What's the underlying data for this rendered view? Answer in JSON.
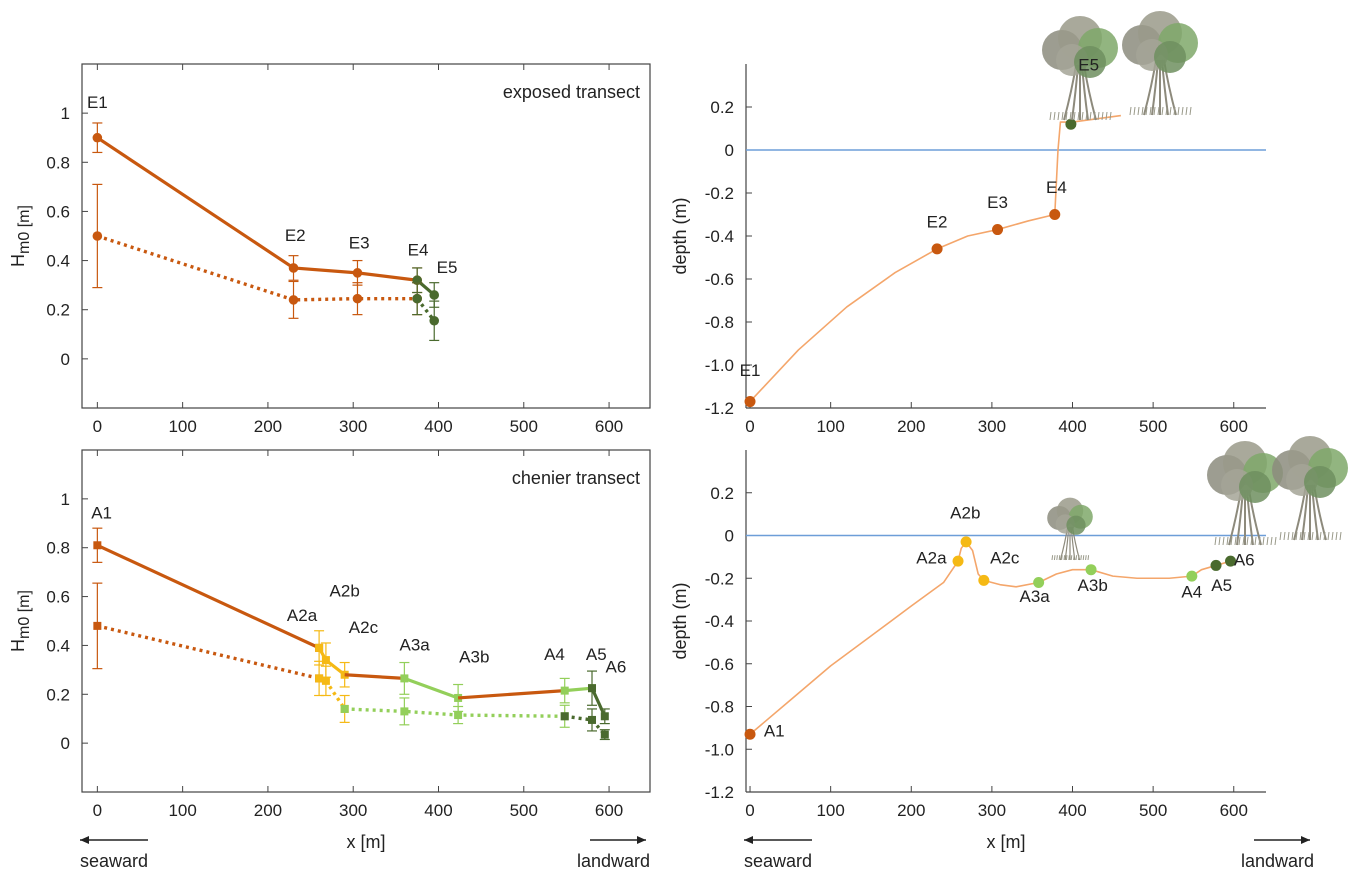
{
  "colors": {
    "dark_orange": "#c8580f",
    "yellow": "#f5b914",
    "light_green": "#93cf5a",
    "dark_green": "#4a6a2e",
    "profile_orange": "#f4a66b",
    "water": "#6d9ed8",
    "tree_grey": "#8c8c7e",
    "tree_green": "#7fa86a"
  },
  "chart_data": [
    {
      "id": "tl",
      "type": "line",
      "note": "exposed transect",
      "xlabel": "",
      "ylabel_main": "H",
      "ylabel_sub": "m0 [m]",
      "xlim": [
        -18,
        648
      ],
      "ylim": [
        -0.2,
        1.2
      ],
      "xticks": [
        0,
        100,
        200,
        300,
        400,
        500,
        600
      ],
      "yticks": [
        0,
        0.2,
        0.4,
        0.6,
        0.8,
        1
      ],
      "ytick_labels": [
        "0",
        "0.2",
        "0.4",
        "0.6",
        "0.8",
        "1"
      ],
      "series": [
        {
          "style": "solid",
          "color": "#c8580f",
          "marker": "circle",
          "x": [
            0,
            230,
            305,
            375
          ],
          "y": [
            0.9,
            0.37,
            0.35,
            0.32
          ],
          "err": [
            0.06,
            0.05,
            0.05,
            0.05
          ]
        },
        {
          "style": "solid",
          "color": "#4a6a2e",
          "marker": "circle",
          "x": [
            375,
            395
          ],
          "y": [
            0.32,
            0.26
          ],
          "err": [
            0.05,
            0.05
          ]
        },
        {
          "style": "dotted",
          "color": "#c8580f",
          "marker": "circle",
          "x": [
            0,
            230,
            305,
            375
          ],
          "y": [
            0.5,
            0.24,
            0.245,
            0.245
          ],
          "err": [
            0.21,
            0.075,
            0.065,
            0.065
          ]
        },
        {
          "style": "dotted",
          "color": "#4a6a2e",
          "marker": "circle",
          "x": [
            375,
            395
          ],
          "y": [
            0.245,
            0.155
          ],
          "err": [
            0.065,
            0.08
          ]
        }
      ],
      "labels": [
        {
          "text": "E1",
          "x": 0,
          "y": 1.02
        },
        {
          "text": "E2",
          "x": 232,
          "y": 0.48
        },
        {
          "text": "E3",
          "x": 307,
          "y": 0.45
        },
        {
          "text": "E4",
          "x": 376,
          "y": 0.42
        },
        {
          "text": "E5",
          "x": 410,
          "y": 0.35
        }
      ]
    },
    {
      "id": "tr",
      "type": "line",
      "xlabel": "",
      "ylabel": "depth (m)",
      "xlim": [
        -5,
        640
      ],
      "ylim": [
        -1.2,
        0.4
      ],
      "xticks": [
        0,
        100,
        200,
        300,
        400,
        500,
        600
      ],
      "yticks": [
        -1.2,
        -1.0,
        -0.8,
        -0.6,
        -0.4,
        -0.2,
        0,
        0.2
      ],
      "ytick_labels": [
        "-1.2",
        "-1.0",
        "-0.8",
        "-0.6",
        "-0.4",
        "-0.2",
        "0",
        "0.2"
      ],
      "water_level": 0,
      "profile": {
        "color": "#f4a66b",
        "x": [
          0,
          60,
          120,
          180,
          232,
          270,
          307,
          345,
          378,
          382,
          385,
          400,
          460
        ],
        "y": [
          -1.17,
          -0.93,
          -0.73,
          -0.57,
          -0.46,
          -0.4,
          -0.37,
          -0.33,
          -0.3,
          0,
          0.13,
          0.13,
          0.16
        ]
      },
      "points": [
        {
          "label": "E1",
          "x": 0,
          "y": -1.17,
          "color": "#c8580f"
        },
        {
          "label": "E2",
          "x": 232,
          "y": -0.46,
          "color": "#c8580f"
        },
        {
          "label": "E3",
          "x": 307,
          "y": -0.37,
          "color": "#c8580f"
        },
        {
          "label": "E4",
          "x": 378,
          "y": -0.3,
          "color": "#c8580f"
        },
        {
          "label": "E5",
          "x": 398,
          "y": 0.12,
          "color": "#4a6a2e"
        }
      ],
      "labels": [
        {
          "text": "E1",
          "x": 0,
          "y": -1.05
        },
        {
          "text": "E2",
          "x": 232,
          "y": -0.36
        },
        {
          "text": "E3",
          "x": 307,
          "y": -0.27
        },
        {
          "text": "E4",
          "x": 380,
          "y": -0.2
        },
        {
          "text": "E5",
          "x": 420,
          "y": 0.37
        }
      ]
    },
    {
      "id": "bl",
      "type": "line",
      "note": "chenier transect",
      "xlabel": "x [m]",
      "ylabel_main": "H",
      "ylabel_sub": "m0 [m]",
      "xlim": [
        -18,
        648
      ],
      "ylim": [
        -0.2,
        1.2
      ],
      "xticks": [
        0,
        100,
        200,
        300,
        400,
        500,
        600
      ],
      "yticks": [
        0,
        0.2,
        0.4,
        0.6,
        0.8,
        1
      ],
      "ytick_labels": [
        "0",
        "0.2",
        "0.4",
        "0.6",
        "0.8",
        "1"
      ],
      "series": [
        {
          "style": "solid",
          "color": "#c8580f",
          "marker": "square",
          "x": [
            0,
            260
          ],
          "y": [
            0.81,
            0.39
          ],
          "err": [
            0.07,
            0
          ]
        },
        {
          "style": "solid",
          "color": "#f5b914",
          "marker": "square",
          "x": [
            260,
            268,
            290
          ],
          "y": [
            0.39,
            0.34,
            0.28
          ],
          "err": [
            0.07,
            0.07,
            0.05
          ]
        },
        {
          "style": "solid",
          "color": "#c8580f",
          "marker": "none",
          "x": [
            290,
            360
          ],
          "y": [
            0.28,
            0.265
          ],
          "err": [
            0,
            0
          ]
        },
        {
          "style": "solid",
          "color": "#93cf5a",
          "marker": "square",
          "x": [
            360,
            423
          ],
          "y": [
            0.265,
            0.185
          ],
          "err": [
            0.065,
            0.055
          ]
        },
        {
          "style": "solid",
          "color": "#c8580f",
          "marker": "none",
          "x": [
            423,
            548
          ],
          "y": [
            0.185,
            0.215
          ],
          "err": [
            0,
            0
          ]
        },
        {
          "style": "solid",
          "color": "#93cf5a",
          "marker": "square",
          "x": [
            548,
            580
          ],
          "y": [
            0.215,
            0.225
          ],
          "err": [
            0.05,
            0
          ]
        },
        {
          "style": "solid",
          "color": "#4a6a2e",
          "marker": "square",
          "x": [
            580,
            595
          ],
          "y": [
            0.225,
            0.11
          ],
          "err": [
            0.07,
            0.03
          ]
        },
        {
          "style": "dotted",
          "color": "#c8580f",
          "marker": "square",
          "x": [
            0,
            260
          ],
          "y": [
            0.48,
            0.265
          ],
          "err": [
            0.175,
            0
          ]
        },
        {
          "style": "dotted",
          "color": "#f5b914",
          "marker": "square",
          "x": [
            260,
            268,
            290
          ],
          "y": [
            0.265,
            0.255,
            0.14
          ],
          "err": [
            0.07,
            0.06,
            0.055
          ]
        },
        {
          "style": "dotted",
          "color": "#93cf5a",
          "marker": "square",
          "x": [
            290,
            360,
            423,
            548
          ],
          "y": [
            0.14,
            0.13,
            0.115,
            0.11
          ],
          "err": [
            0,
            0.055,
            0.035,
            0.045
          ]
        },
        {
          "style": "dotted",
          "color": "#4a6a2e",
          "marker": "square",
          "x": [
            548,
            580,
            595
          ],
          "y": [
            0.11,
            0.095,
            0.035
          ],
          "err": [
            0,
            0.045,
            0.02
          ]
        }
      ],
      "labels": [
        {
          "text": "A1",
          "x": 5,
          "y": 0.92
        },
        {
          "text": "A2a",
          "x": 240,
          "y": 0.5
        },
        {
          "text": "A2b",
          "x": 290,
          "y": 0.6
        },
        {
          "text": "A2c",
          "x": 312,
          "y": 0.45
        },
        {
          "text": "A3a",
          "x": 372,
          "y": 0.38
        },
        {
          "text": "A3b",
          "x": 442,
          "y": 0.33
        },
        {
          "text": "A4",
          "x": 536,
          "y": 0.34
        },
        {
          "text": "A5",
          "x": 585,
          "y": 0.34
        },
        {
          "text": "A6",
          "x": 608,
          "y": 0.29
        }
      ],
      "arrows": {
        "left": "seaward",
        "right": "landward"
      }
    },
    {
      "id": "br",
      "type": "line",
      "xlabel": "x [m]",
      "ylabel": "depth (m)",
      "xlim": [
        -5,
        640
      ],
      "ylim": [
        -1.2,
        0.4
      ],
      "xticks": [
        0,
        100,
        200,
        300,
        400,
        500,
        600
      ],
      "yticks": [
        -1.2,
        -1.0,
        -0.8,
        -0.6,
        -0.4,
        -0.2,
        0,
        0.2
      ],
      "ytick_labels": [
        "-1.2",
        "-1.0",
        "-0.8",
        "-0.6",
        "-0.4",
        "-0.2",
        "0",
        "0.2"
      ],
      "water_level": 0,
      "profile": {
        "color": "#f4a66b",
        "x": [
          0,
          50,
          100,
          150,
          200,
          240,
          258,
          262,
          268,
          276,
          283,
          290,
          310,
          330,
          358,
          380,
          400,
          423,
          450,
          480,
          520,
          548,
          560,
          578,
          596
        ],
        "y": [
          -0.93,
          -0.77,
          -0.61,
          -0.47,
          -0.33,
          -0.22,
          -0.12,
          -0.06,
          -0.03,
          -0.07,
          -0.18,
          -0.21,
          -0.23,
          -0.24,
          -0.22,
          -0.18,
          -0.16,
          -0.16,
          -0.19,
          -0.2,
          -0.2,
          -0.19,
          -0.16,
          -0.14,
          -0.12
        ]
      },
      "points": [
        {
          "label": "A1",
          "x": 0,
          "y": -0.93,
          "color": "#c8580f"
        },
        {
          "label": "A2a",
          "x": 258,
          "y": -0.12,
          "color": "#f5b914"
        },
        {
          "label": "A2b",
          "x": 268,
          "y": -0.03,
          "color": "#f5b914"
        },
        {
          "label": "A2c",
          "x": 290,
          "y": -0.21,
          "color": "#f5b914"
        },
        {
          "label": "A3a",
          "x": 358,
          "y": -0.22,
          "color": "#93cf5a"
        },
        {
          "label": "A3b",
          "x": 423,
          "y": -0.16,
          "color": "#93cf5a"
        },
        {
          "label": "A4",
          "x": 548,
          "y": -0.19,
          "color": "#93cf5a"
        },
        {
          "label": "A5",
          "x": 578,
          "y": -0.14,
          "color": "#4a6a2e"
        },
        {
          "label": "A6",
          "x": 596,
          "y": -0.12,
          "color": "#4a6a2e"
        }
      ],
      "labels": [
        {
          "text": "A1",
          "x": 30,
          "y": -0.94
        },
        {
          "text": "A2a",
          "x": 225,
          "y": -0.13
        },
        {
          "text": "A2b",
          "x": 267,
          "y": 0.08
        },
        {
          "text": "A2c",
          "x": 316,
          "y": -0.13
        },
        {
          "text": "A3a",
          "x": 353,
          "y": -0.31
        },
        {
          "text": "A3b",
          "x": 425,
          "y": -0.26
        },
        {
          "text": "A4",
          "x": 548,
          "y": -0.29
        },
        {
          "text": "A5",
          "x": 585,
          "y": -0.26
        },
        {
          "text": "A6",
          "x": 613,
          "y": -0.14
        }
      ],
      "arrows": {
        "left": "seaward",
        "right": "landward"
      }
    }
  ]
}
